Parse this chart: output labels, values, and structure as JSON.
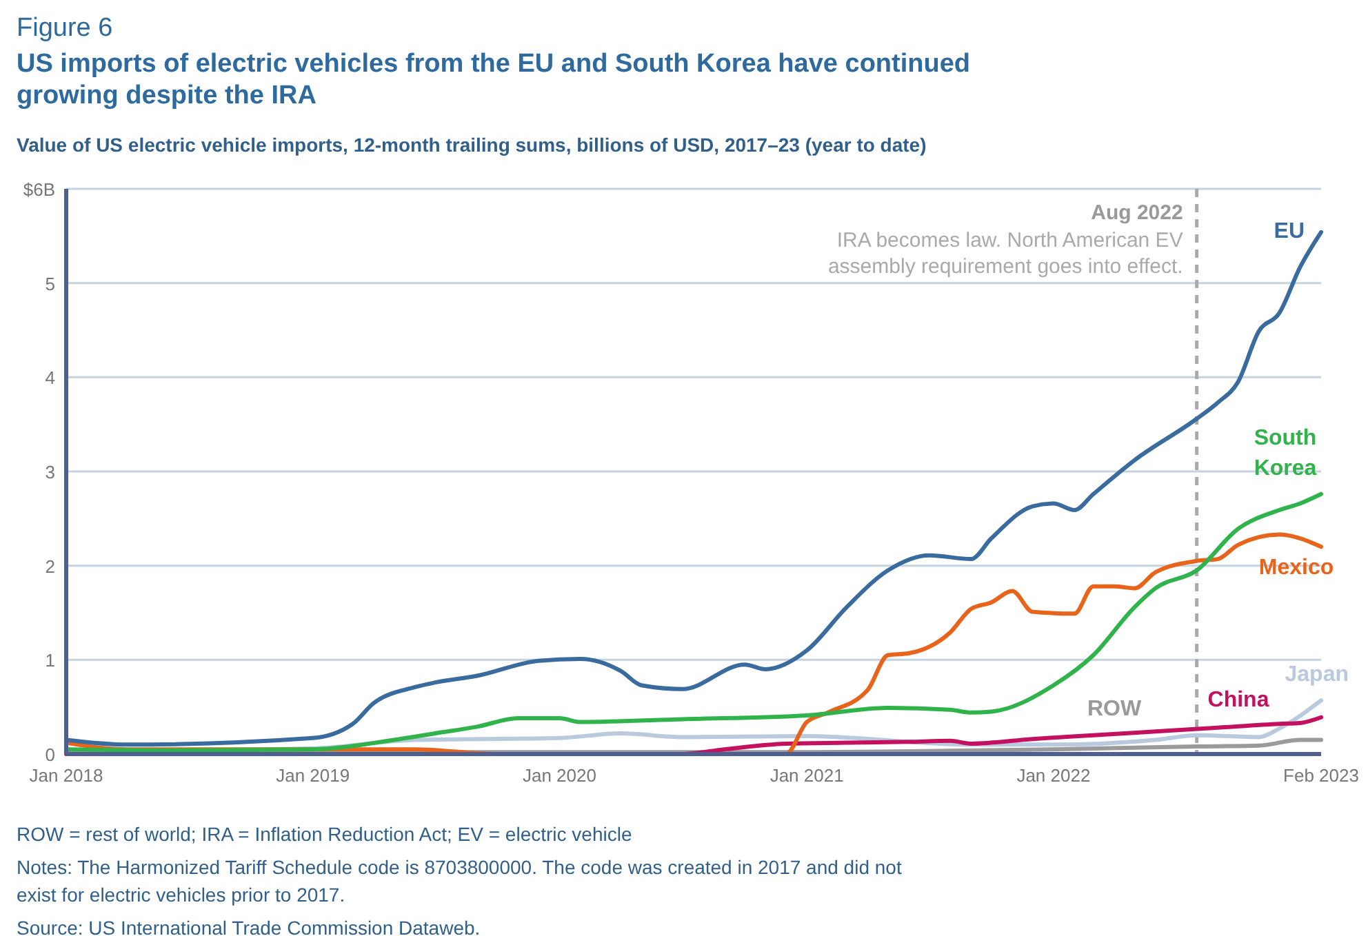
{
  "chart_data": {
    "type": "line",
    "title": "Figure 6",
    "subtitle": "US imports of electric vehicles from the EU and South Korea have continued growing despite the IRA",
    "ylabel": "Value of US electric vehicle imports, 12-month trailing sums, billions of USD, 2017–23 (year to date)",
    "xlim": [
      "2018-01",
      "2023-02"
    ],
    "xticks": [
      {
        "value": "2018-01",
        "label": "Jan 2018"
      },
      {
        "value": "2019-01",
        "label": "Jan 2019"
      },
      {
        "value": "2020-01",
        "label": "Jan 2020"
      },
      {
        "value": "2021-01",
        "label": "Jan 2021"
      },
      {
        "value": "2022-01",
        "label": "Jan 2022"
      },
      {
        "value": "2023-02",
        "label": "Feb 2023"
      }
    ],
    "ylim": [
      0,
      6
    ],
    "yticks": [
      0,
      1,
      2,
      3,
      4,
      5,
      {
        "value": 6,
        "label": "$6B"
      }
    ],
    "grid": "y",
    "series": [
      {
        "name": "Japan",
        "color": "#b9cade",
        "x": [
          "2018-01",
          "2019-01",
          "2019-06",
          "2020-01",
          "2020-04",
          "2020-07",
          "2021-01",
          "2021-09",
          "2022-01",
          "2022-06",
          "2022-08",
          "2022-11",
          "2022-12",
          "2023-02"
        ],
        "values": [
          0.02,
          0.06,
          0.15,
          0.17,
          0.22,
          0.18,
          0.19,
          0.1,
          0.1,
          0.15,
          0.2,
          0.18,
          0.27,
          0.57
        ]
      },
      {
        "name": "ROW",
        "color": "#9a9a9a",
        "x": [
          "2018-01",
          "2019-01",
          "2020-01",
          "2021-01",
          "2021-06",
          "2022-01",
          "2022-08",
          "2022-11",
          "2023-01",
          "2023-02"
        ],
        "values": [
          0.02,
          0.02,
          0.02,
          0.02,
          0.03,
          0.05,
          0.08,
          0.09,
          0.15,
          0.15
        ]
      },
      {
        "name": "China",
        "color": "#c3105f",
        "x": [
          "2018-01",
          "2019-01",
          "2020-01",
          "2020-07",
          "2020-09",
          "2020-12",
          "2021-03",
          "2021-06",
          "2021-08",
          "2021-09",
          "2021-12",
          "2022-03",
          "2022-06",
          "2022-09",
          "2022-12",
          "2023-01",
          "2023-02"
        ],
        "values": [
          0,
          0,
          0,
          0,
          0.05,
          0.11,
          0.12,
          0.13,
          0.14,
          0.11,
          0.16,
          0.2,
          0.24,
          0.28,
          0.32,
          0.33,
          0.39
        ]
      },
      {
        "name": "Mexico",
        "color": "#e8641b",
        "x": [
          "2018-01",
          "2018-04",
          "2019-01",
          "2019-06",
          "2019-10",
          "2020-06",
          "2020-12",
          "2021-01",
          "2021-02",
          "2021-04",
          "2021-05",
          "2021-06",
          "2021-08",
          "2021-09",
          "2021-10",
          "2021-11",
          "2021-12",
          "2022-02",
          "2022-03",
          "2022-04",
          "2022-05",
          "2022-06",
          "2022-08",
          "2022-09",
          "2022-10",
          "2022-12",
          "2023-01",
          "2023-02"
        ],
        "values": [
          0.12,
          0.05,
          0.05,
          0.05,
          0,
          0,
          0,
          0.34,
          0.44,
          0.68,
          1.05,
          1.07,
          1.29,
          1.54,
          1.61,
          1.73,
          1.51,
          1.49,
          1.78,
          1.78,
          1.76,
          1.93,
          2.05,
          2.07,
          2.22,
          2.33,
          2.29,
          2.2
        ]
      },
      {
        "name": "South Korea",
        "color": "#2fb34a",
        "x": [
          "2018-01",
          "2018-06",
          "2019-01",
          "2019-05",
          "2019-07",
          "2019-09",
          "2019-11",
          "2020-01",
          "2020-02",
          "2020-07",
          "2021-01",
          "2021-05",
          "2021-08",
          "2021-09",
          "2021-10",
          "2022-01",
          "2022-03",
          "2022-05",
          "2022-06",
          "2022-08",
          "2022-10",
          "2022-12",
          "2023-01",
          "2023-02"
        ],
        "values": [
          0.05,
          0.04,
          0.05,
          0.15,
          0.22,
          0.29,
          0.38,
          0.38,
          0.34,
          0.37,
          0.41,
          0.49,
          0.47,
          0.44,
          0.45,
          0.73,
          1.05,
          1.56,
          1.76,
          1.95,
          2.39,
          2.59,
          2.66,
          2.76
        ]
      },
      {
        "name": "EU",
        "color": "#3a6b9e",
        "x": [
          "2018-01",
          "2018-04",
          "2019-01",
          "2019-03",
          "2019-04",
          "2019-06",
          "2019-07",
          "2019-09",
          "2019-12",
          "2020-02",
          "2020-04",
          "2020-05",
          "2020-07",
          "2020-10",
          "2020-11",
          "2021-01",
          "2021-03",
          "2021-05",
          "2021-07",
          "2021-09",
          "2021-10",
          "2021-12",
          "2022-01",
          "2022-02",
          "2022-03",
          "2022-05",
          "2022-08",
          "2022-09",
          "2022-10",
          "2022-11",
          "2022-12",
          "2023-01",
          "2023-02"
        ],
        "values": [
          0.15,
          0.1,
          0.17,
          0.32,
          0.54,
          0.71,
          0.76,
          0.83,
          0.99,
          1.01,
          0.88,
          0.73,
          0.69,
          0.95,
          0.9,
          1.1,
          1.56,
          1.95,
          2.11,
          2.07,
          2.29,
          2.63,
          2.66,
          2.59,
          2.76,
          3.12,
          3.56,
          3.73,
          3.95,
          4.49,
          4.68,
          5.17,
          5.54
        ]
      }
    ],
    "ref_lines": [
      {
        "axis": "x",
        "value": "2022-08",
        "label": "Aug 2022",
        "color": "#aaaaaa",
        "line_style": "dashed"
      }
    ],
    "annotations": [
      {
        "text": "IRA becomes law. North American EV assembly requirement goes into effect.",
        "x": "2022-08",
        "y": 5.5
      },
      "ROW = rest of world; IRA = Inflation Reduction Act; EV = electric vehicle",
      "Notes: The Harmonized Tariff Schedule code is 8703800000. The code was created in 2017 and did not exist for electric vehicles prior to 2017.",
      "Source: US International Trade Commission Dataweb."
    ]
  }
}
